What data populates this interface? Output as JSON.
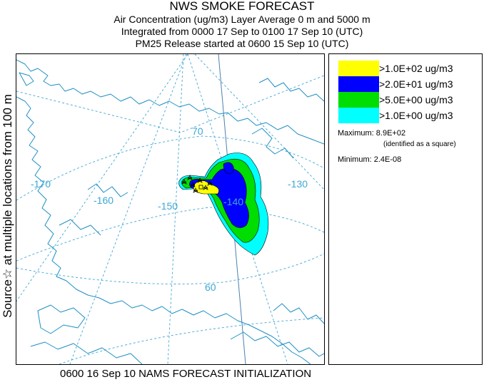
{
  "title": {
    "line1": "NWS SMOKE FORECAST",
    "line2": "Air Concentration (ug/m3) Layer Average    0 m and  5000 m",
    "line3": "Integrated from 0000 17 Sep to 0100 17 Sep 10 (UTC)",
    "line4": "PM25 Release started at 0600 15 Sep 10 (UTC)"
  },
  "side_label": "Source☆  at multiple locations   from   100 m",
  "footer": "0600 16 Sep 10 NAMS FORECAST INITIALIZATION",
  "map": {
    "longitude_labels": [
      "-170",
      "-160",
      "-150",
      "-140",
      "-130"
    ],
    "latitude_labels": [
      "70",
      "60"
    ],
    "colors": {
      "graticule": "#3ea7d5",
      "coastline": "#1e8fc4"
    }
  },
  "legend": {
    "items": [
      {
        "label": ">1.0E+02 ug/m3",
        "color": "#ffff00"
      },
      {
        "label": ">2.0E+01 ug/m3",
        "color": "#0000ff"
      },
      {
        "label": ">5.0E+00 ug/m3",
        "color": "#00dd00"
      },
      {
        "label": ">1.0E+00 ug/m3",
        "color": "#00ffff"
      }
    ],
    "maximum": "Maximum: 8.9E+02",
    "maximum_note": "(identified as a square)",
    "minimum": "Minimum: 2.4E-08"
  }
}
